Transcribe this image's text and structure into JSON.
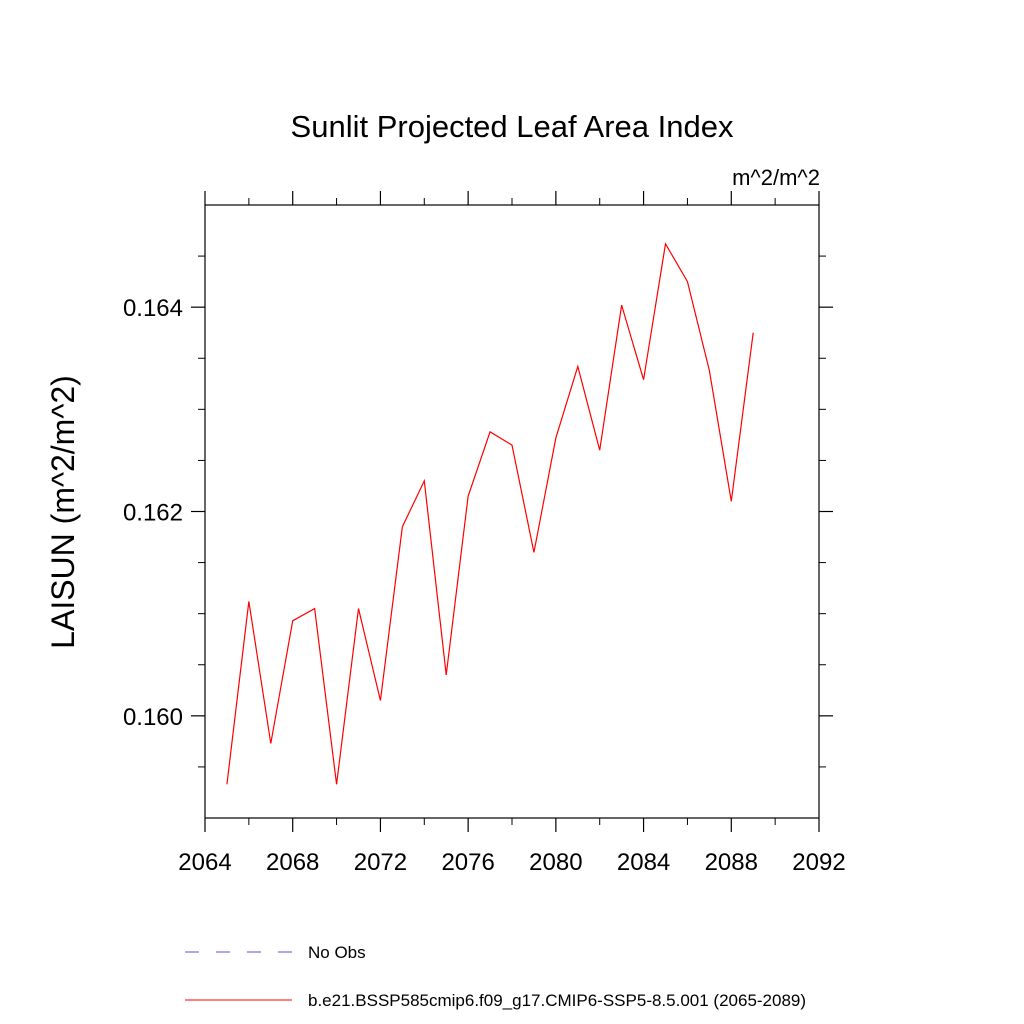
{
  "chart_data": {
    "type": "line",
    "title": "Sunlit Projected Leaf Area Index",
    "units": "m^2/m^2",
    "xlabel": "",
    "ylabel": "LAISUN  (m^2/m^2)",
    "xlim": [
      2064,
      2092
    ],
    "ylim": [
      0.159,
      0.165
    ],
    "x_ticks": [
      2064,
      2068,
      2072,
      2076,
      2080,
      2084,
      2088,
      2092
    ],
    "x_tick_labels": [
      "2064",
      "2068",
      "2072",
      "2076",
      "2080",
      "2084",
      "2088",
      "2092"
    ],
    "y_ticks": [
      0.16,
      0.162,
      0.164
    ],
    "y_tick_labels": [
      "0.160",
      "0.162",
      "0.164"
    ],
    "x_minor_step": 2,
    "y_minor_step": 0.0005,
    "grid": false,
    "legend_position": "bottom",
    "legend": [
      {
        "label": "No Obs",
        "style": "dashed",
        "color": "#5a4fcf"
      },
      {
        "label": "b.e21.BSSP585cmip6.f09_g17.CMIP6-SSP5-8.5.001 (2065-2089)",
        "style": "solid",
        "color": "#ff0000"
      }
    ],
    "series": [
      {
        "name": "b.e21.BSSP585cmip6.f09_g17.CMIP6-SSP5-8.5.001 (2065-2089)",
        "color": "#ff0000",
        "x": [
          2065,
          2066,
          2067,
          2068,
          2069,
          2070,
          2071,
          2072,
          2073,
          2074,
          2075,
          2076,
          2077,
          2078,
          2079,
          2080,
          2081,
          2082,
          2083,
          2084,
          2085,
          2086,
          2087,
          2088,
          2089
        ],
        "values": [
          0.15933,
          0.16112,
          0.15973,
          0.16093,
          0.16105,
          0.15933,
          0.16105,
          0.16015,
          0.16185,
          0.1623,
          0.1604,
          0.16215,
          0.16278,
          0.16265,
          0.1616,
          0.16272,
          0.16342,
          0.1626,
          0.16402,
          0.16329,
          0.16462,
          0.16425,
          0.16338,
          0.1621,
          0.16375
        ]
      }
    ]
  }
}
